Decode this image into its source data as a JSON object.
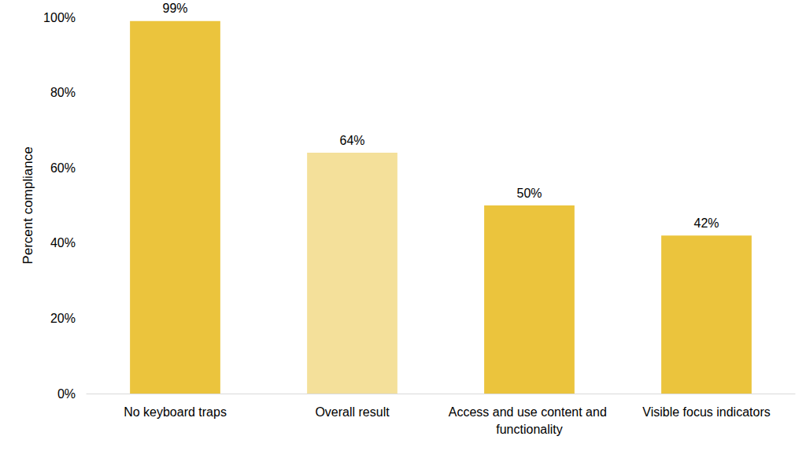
{
  "chart_data": {
    "type": "bar",
    "categories": [
      "No keyboard traps",
      "Overall result",
      "Access and use content and functionality",
      "Visible focus indicators"
    ],
    "values": [
      99,
      64,
      50,
      42
    ],
    "value_labels": [
      "99%",
      "64%",
      "50%",
      "42%"
    ],
    "colors": [
      "#EBC43D",
      "#F4E09A",
      "#EBC43D",
      "#EBC43D"
    ],
    "y_label": "Percent compliance",
    "ylim": [
      0,
      100
    ],
    "yticks": [
      {
        "value": 0,
        "label": "0%"
      },
      {
        "value": 20,
        "label": "20%"
      },
      {
        "value": 40,
        "label": "40%"
      },
      {
        "value": 60,
        "label": "60%"
      },
      {
        "value": 80,
        "label": "80%"
      },
      {
        "value": 100,
        "label": "100%"
      }
    ],
    "grid": false,
    "data_labels": true
  }
}
